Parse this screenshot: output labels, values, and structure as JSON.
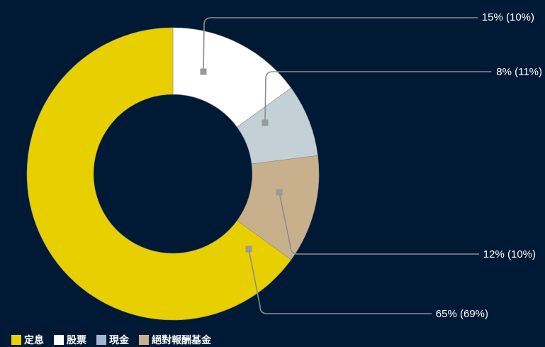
{
  "chart_data": {
    "type": "pie",
    "variant": "donut",
    "slices": [
      {
        "label": "股票",
        "value": 15,
        "callout": "15% (10%)",
        "color": "#ffffff"
      },
      {
        "label": "現金",
        "value": 8,
        "callout": "8% (11%)",
        "color": "#c3d1d7"
      },
      {
        "label": "絕對報酬基金",
        "value": 12,
        "callout": "12% (10%)",
        "color": "#c9b08c"
      },
      {
        "label": "定息",
        "value": 65,
        "callout": "65% (69%)",
        "color": "#e8cf00"
      }
    ],
    "legend": {
      "placement": "bottom-left",
      "items": [
        {
          "label": "定息",
          "color": "#e8cf00"
        },
        {
          "label": "股票",
          "color": "#ffffff"
        },
        {
          "label": "現金",
          "color": "#a4b6d6"
        },
        {
          "label": "絕對報酬基金",
          "color": "#c9b08c"
        }
      ]
    }
  },
  "colors": {
    "background": "#001a35",
    "leader_line": "#8c8c8c",
    "marker": "#9a9a9a"
  }
}
